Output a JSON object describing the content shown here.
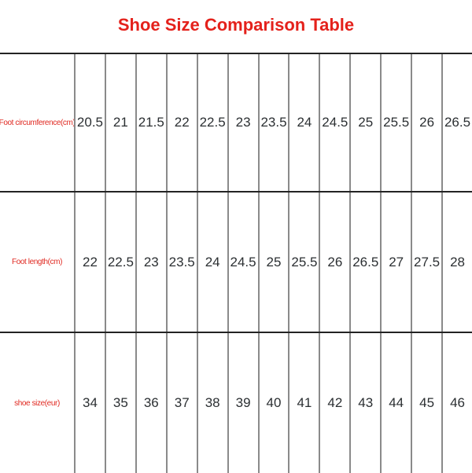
{
  "title": "Shoe Size Comparison Table",
  "colors": {
    "title_red": "#e4211b",
    "row_label_red": "#e02a22",
    "value_text": "#2b2f32",
    "horizontal_line": "#232323",
    "vertical_line": "#8a8a8a",
    "background": "#ffffff"
  },
  "chart_data": {
    "type": "table",
    "title": "Shoe Size Comparison Table",
    "layout": {
      "label_column_first": true,
      "value_columns": 13,
      "grid": "internal vertical separators, dark horizontal dividers, bottom and right edges open"
    },
    "rows": [
      {
        "label": "Foot circumference(cm)",
        "values": [
          "20.5",
          "21",
          "21.5",
          "22",
          "22.5",
          "23",
          "23.5",
          "24",
          "24.5",
          "25",
          "25.5",
          "26",
          "26.5"
        ]
      },
      {
        "label": "Foot length(cm)",
        "values": [
          "22",
          "22.5",
          "23",
          "23.5",
          "24",
          "24.5",
          "25",
          "25.5",
          "26",
          "26.5",
          "27",
          "27.5",
          "28"
        ]
      },
      {
        "label": "shoe size(eur)",
        "values": [
          "34",
          "35",
          "36",
          "37",
          "38",
          "39",
          "40",
          "41",
          "42",
          "43",
          "44",
          "45",
          "46"
        ]
      }
    ]
  }
}
